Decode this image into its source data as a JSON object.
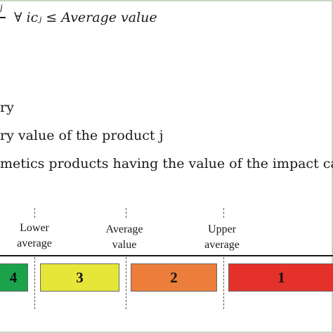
{
  "formula": {
    "superscript": "j",
    "expression": "∀ icⱼ ≤  Average value"
  },
  "definitions": [
    "ry",
    "ry value of the product j",
    "metics products having the value of the impact categ"
  ],
  "scale": {
    "markers": [
      {
        "line1": "Lower",
        "line2": "average"
      },
      {
        "line1": "Average",
        "line2": "value"
      },
      {
        "line1": "Upper",
        "line2": "average"
      }
    ],
    "bands": [
      {
        "label": "4",
        "color": "#1aa34a"
      },
      {
        "label": "3",
        "color": "#e6e639"
      },
      {
        "label": "2",
        "color": "#ec7d3a"
      },
      {
        "label": "1",
        "color": "#e4322b"
      }
    ]
  }
}
